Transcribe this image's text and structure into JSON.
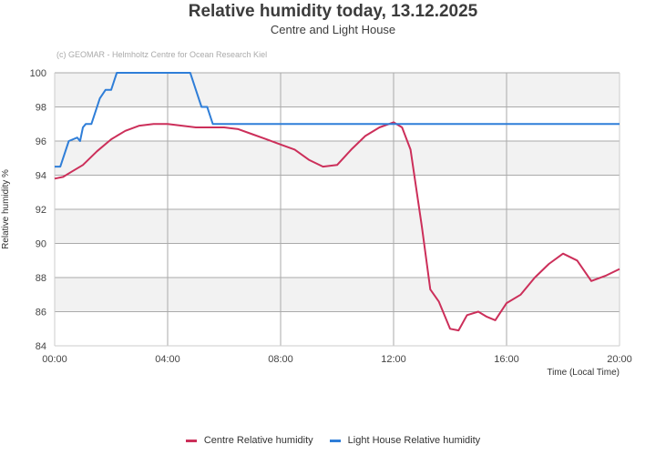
{
  "header": {
    "title": "Relative humidity today, 13.12.2025",
    "subtitle": "Centre and Light House",
    "credit": "(c) GEOMAR - Helmholtz Centre for Ocean Research Kiel"
  },
  "axes": {
    "ylabel": "Relative humidity %",
    "xlabel": "Time (Local Time)",
    "yticks": [
      "84",
      "86",
      "88",
      "90",
      "92",
      "94",
      "96",
      "98",
      "100"
    ],
    "xticks": [
      "00:00",
      "04:00",
      "08:00",
      "12:00",
      "16:00",
      "20:00"
    ]
  },
  "legend": [
    {
      "label": "Centre Relative humidity",
      "color": "#cc2f5a"
    },
    {
      "label": "Light House Relative humidity",
      "color": "#2f7ed8"
    }
  ],
  "chart_data": {
    "type": "line",
    "title": "Relative humidity today, 13.12.2025",
    "subtitle": "Centre and Light House",
    "xlabel": "Time (Local Time)",
    "ylabel": "Relative humidity %",
    "xlim": [
      "00:00",
      "20:00"
    ],
    "ylim": [
      84,
      100
    ],
    "grid": true,
    "legend_position": "bottom",
    "series": [
      {
        "name": "Centre Relative humidity",
        "color": "#cc2f5a",
        "x_hours": [
          0,
          0.3,
          0.6,
          1.0,
          1.5,
          2.0,
          2.5,
          3.0,
          3.5,
          4.0,
          4.5,
          5.0,
          5.5,
          6.0,
          6.5,
          7.0,
          7.5,
          8.0,
          8.5,
          9.0,
          9.5,
          10.0,
          10.5,
          11.0,
          11.5,
          12.0,
          12.3,
          12.6,
          13.0,
          13.3,
          13.6,
          14.0,
          14.3,
          14.6,
          15.0,
          15.3,
          15.6,
          16.0,
          16.5,
          17.0,
          17.5,
          18.0,
          18.5,
          19.0,
          19.5,
          20.0
        ],
        "values": [
          93.8,
          93.9,
          94.2,
          94.6,
          95.4,
          96.1,
          96.6,
          96.9,
          97.0,
          97.0,
          96.9,
          96.8,
          96.8,
          96.8,
          96.7,
          96.4,
          96.1,
          95.8,
          95.5,
          94.9,
          94.5,
          94.6,
          95.5,
          96.3,
          96.8,
          97.1,
          96.8,
          95.5,
          91.0,
          87.3,
          86.6,
          85.0,
          84.9,
          85.8,
          86.0,
          85.7,
          85.5,
          86.5,
          87.0,
          88.0,
          88.8,
          89.4,
          89.0,
          87.8,
          88.1,
          88.5
        ]
      },
      {
        "name": "Light House Relative humidity",
        "color": "#2f7ed8",
        "x_hours": [
          0,
          0.2,
          0.5,
          0.8,
          0.9,
          1.0,
          1.1,
          1.3,
          1.6,
          1.8,
          2.0,
          2.2,
          4.8,
          5.0,
          5.2,
          5.4,
          5.6,
          5.8,
          20.0
        ],
        "values": [
          94.5,
          94.5,
          96.0,
          96.2,
          96.0,
          96.8,
          97.0,
          97.0,
          98.5,
          99.0,
          99.0,
          100,
          100,
          99.0,
          98.0,
          98.0,
          97.0,
          97.0,
          97.0
        ]
      }
    ]
  }
}
